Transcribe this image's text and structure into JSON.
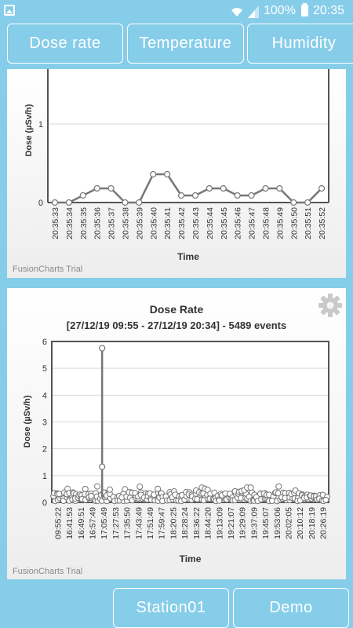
{
  "status_bar": {
    "battery": "100%",
    "time": "20:35"
  },
  "tabs": [
    {
      "label": "Dose rate"
    },
    {
      "label": "Temperature"
    },
    {
      "label": "Humidity"
    }
  ],
  "footer": {
    "station_label": "Station01",
    "demo_label": "Demo"
  },
  "watermark": "FusionCharts Trial",
  "chart_data": [
    {
      "type": "line",
      "title": "",
      "xlabel": "Time",
      "ylabel": "Dose (µSv/h)",
      "ylim": [
        0,
        1.7
      ],
      "yticks": [
        0,
        1
      ],
      "grid": true,
      "categories": [
        "20:35:33",
        "20:35:34",
        "20:35:35",
        "20:35:36",
        "20:35:37",
        "20:35:38",
        "20:35:39",
        "20:35:40",
        "20:35:41",
        "20:35:42",
        "20:35:43",
        "20:35:44",
        "20:35:45",
        "20:35:46",
        "20:35:47",
        "20:35:48",
        "20:35:49",
        "20:35:50",
        "20:35:51",
        "20:35:52"
      ],
      "values": [
        0.0,
        0.0,
        0.09,
        0.18,
        0.18,
        0.0,
        0.0,
        0.36,
        0.36,
        0.09,
        0.09,
        0.18,
        0.18,
        0.09,
        0.09,
        0.18,
        0.18,
        0.0,
        0.0,
        0.18
      ]
    },
    {
      "type": "line",
      "title": "Dose Rate",
      "subtitle": "[27/12/19 09:55 - 27/12/19 20:34] - 5489 events",
      "xlabel": "Time",
      "ylabel": "Dose (µSv/h)",
      "ylim": [
        0,
        6
      ],
      "yticks": [
        0,
        1,
        2,
        3,
        4,
        5,
        6
      ],
      "grid": true,
      "tick_labels": [
        "09:55:22",
        "16:41:53",
        "16:49:51",
        "16:57:49",
        "17:05:49",
        "17:27:53",
        "17:35:50",
        "17:43:49",
        "17:51:49",
        "17:59:47",
        "18:20:25",
        "18:28:24",
        "18:36:22",
        "18:44:20",
        "19:13:09",
        "19:21:07",
        "19:29:09",
        "19:37:09",
        "19:45:07",
        "19:53:06",
        "20:02:05",
        "20:10:12",
        "20:18:19",
        "20:26:19"
      ],
      "baseline_range": [
        0.05,
        0.6
      ],
      "spike": {
        "time": "17:05:49",
        "values": [
          1.33,
          5.75
        ]
      }
    }
  ]
}
